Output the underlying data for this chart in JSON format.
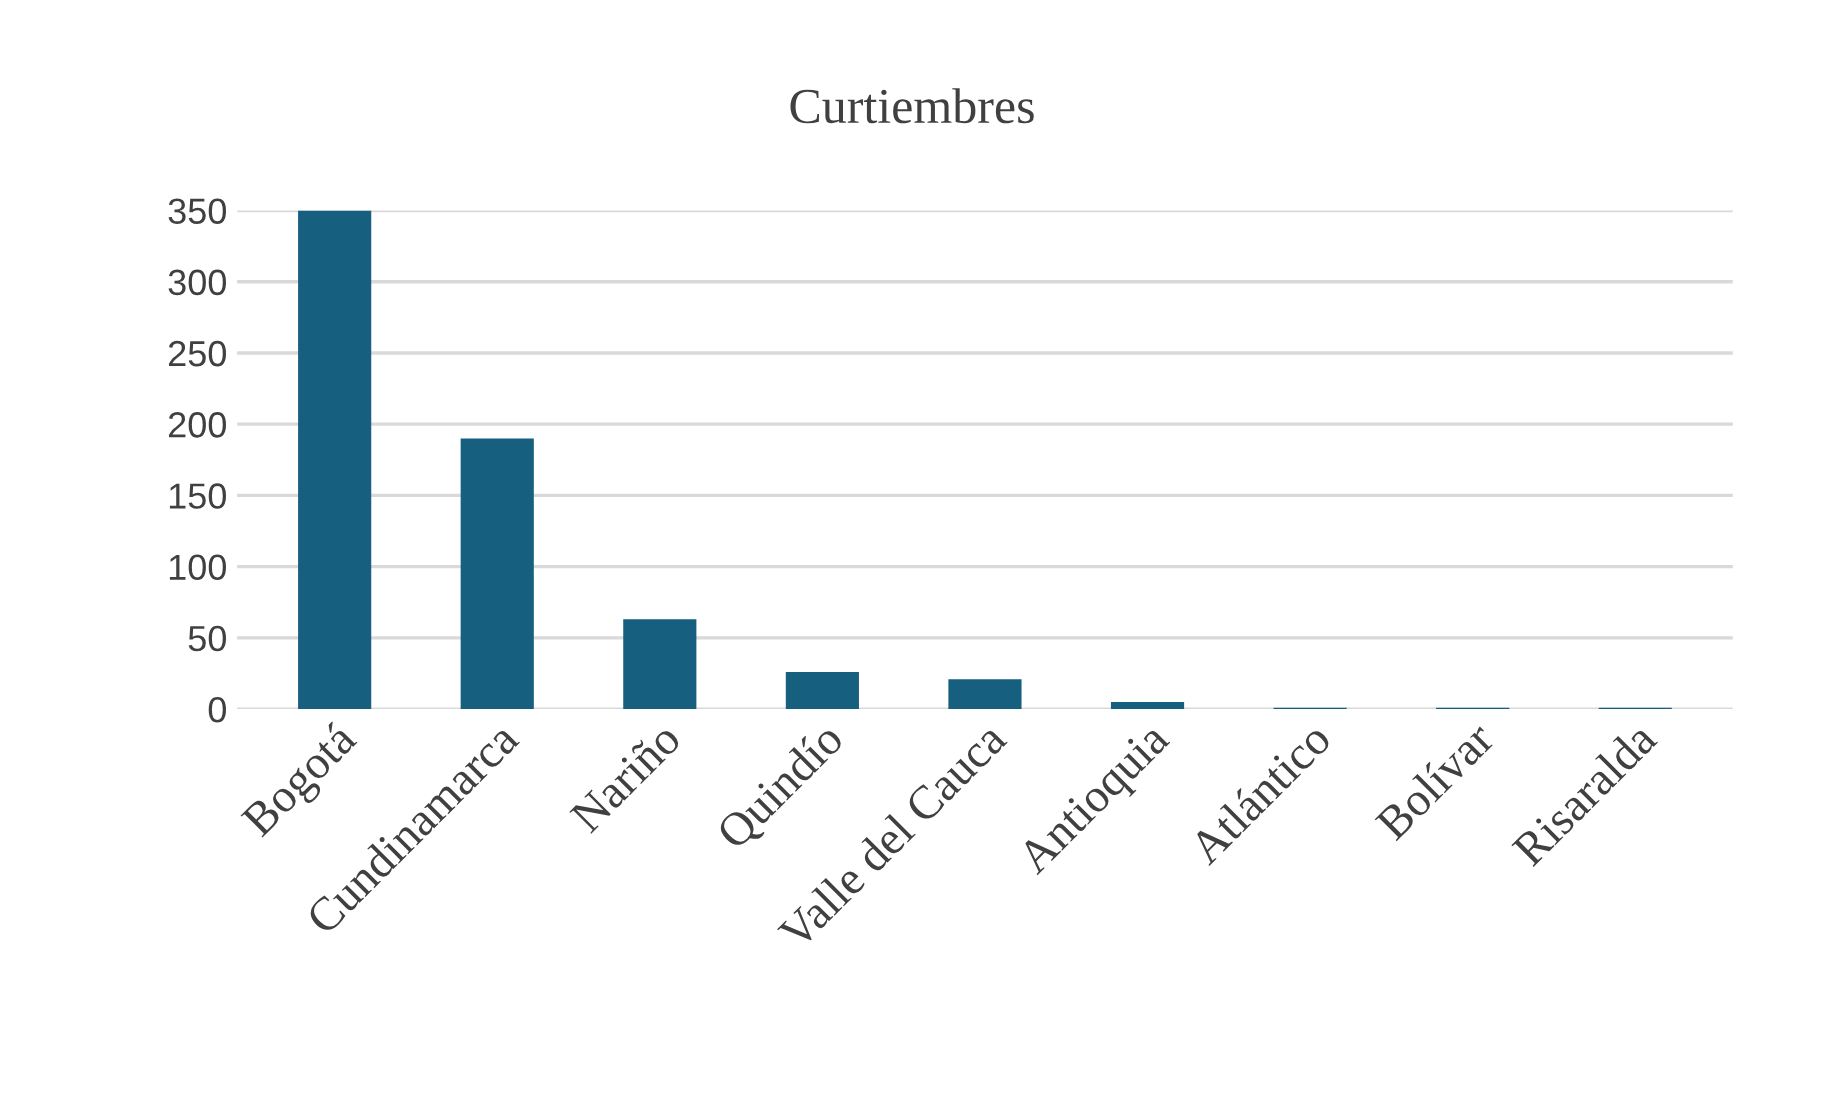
{
  "chart_data": {
    "type": "bar",
    "title": "Curtiembres",
    "categories": [
      "Bogotá",
      "Cundinamarca",
      "Nariño",
      "Quindío",
      "Valle del Cauca",
      "Antioquia",
      "Atlántico",
      "Bolívar",
      "Risaralda"
    ],
    "values": [
      350,
      190,
      63,
      26,
      21,
      5,
      1,
      1,
      1
    ],
    "color": "#165f7e",
    "ylim": [
      0,
      350
    ],
    "yticks": [
      0,
      50,
      100,
      150,
      200,
      250,
      300,
      350
    ],
    "grid": "y"
  }
}
